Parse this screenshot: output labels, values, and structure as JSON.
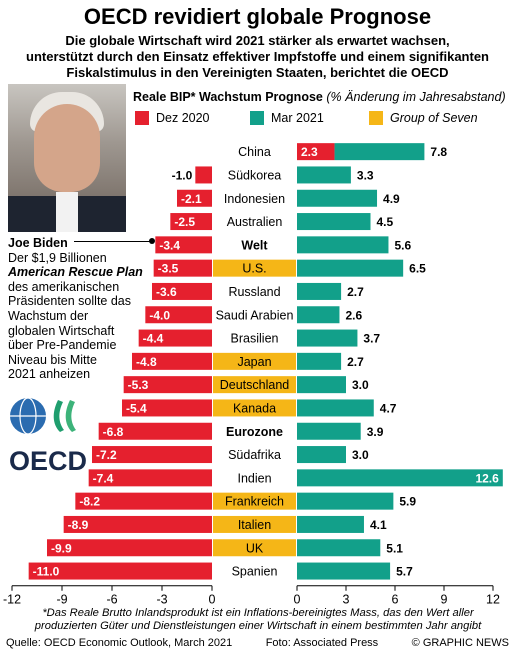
{
  "header": {
    "title": "OECD revidiert globale Prognose",
    "subtitle_lines": [
      "Die globale Wirtschaft wird 2021 stärker als erwartet wachsen,",
      "unterstützt durch den Einsatz effektiver Impfstoffe und einem signifikanten",
      "Fiskalstimulus in den Vereinigten Staaten, berichtet die OECD"
    ]
  },
  "caption": {
    "name": "Joe Biden",
    "line1": "Der $1,9 Billionen",
    "plan": "American Rescue Plan",
    "rest_lines": [
      "des amerikanischen",
      "Präsidenten sollte das",
      "Wachstum der",
      "globalen Wirtschaft",
      "über Pre-Pandemie",
      "Niveau bis Mitte",
      "2021 anheizen"
    ]
  },
  "logo": {
    "text": "OECD"
  },
  "colors": {
    "dez2020": "#e5202e",
    "mar2021": "#12a08a",
    "g7": "#f5b617",
    "axis": "#000000"
  },
  "chart_data": {
    "type": "bar",
    "title": "Reale BIP* Wachstum Prognose",
    "title_note": "(% Änderung im Jahresabstand)",
    "legend": [
      {
        "name": "Dez 2020",
        "color_key": "dez2020"
      },
      {
        "name": "Mar 2021",
        "color_key": "mar2021"
      },
      {
        "name": "Group of Seven",
        "color_key": "g7"
      }
    ],
    "series": [
      {
        "name": "Dez 2020",
        "values": [
          2.3,
          -1.0,
          -2.1,
          -2.5,
          -3.4,
          -3.5,
          -3.6,
          -4.0,
          -4.4,
          -4.8,
          -5.3,
          -5.4,
          -6.8,
          -7.2,
          -7.4,
          -8.2,
          -8.9,
          -9.9,
          -11.0
        ]
      },
      {
        "name": "Mar 2021",
        "values": [
          7.8,
          3.3,
          4.9,
          4.5,
          5.6,
          6.5,
          2.7,
          2.6,
          3.7,
          2.7,
          3.0,
          4.7,
          3.9,
          3.0,
          12.6,
          5.9,
          4.1,
          5.1,
          5.7
        ]
      }
    ],
    "categories": [
      "China",
      "Südkorea",
      "Indonesien",
      "Australien",
      "Welt",
      "U.S.",
      "Russland",
      "Saudi Arabien",
      "Brasilien",
      "Japan",
      "Deutschland",
      "Kanada",
      "Eurozone",
      "Südafrika",
      "Indien",
      "Frankreich",
      "Italien",
      "UK",
      "Spanien"
    ],
    "g7": [
      false,
      false,
      false,
      false,
      false,
      true,
      false,
      false,
      false,
      true,
      true,
      true,
      false,
      false,
      false,
      true,
      true,
      true,
      false
    ],
    "bold_categories": [
      "Welt",
      "Eurozone"
    ],
    "labels_dez": [
      "2.3",
      "-1.0",
      "-2.1",
      "-2.5",
      "-3.4",
      "-3.5",
      "-3.6",
      "-4.0",
      "-4.4",
      "-4.8",
      "-5.3",
      "-5.4",
      "-6.8",
      "-7.2",
      "-7.4",
      "-8.2",
      "-8.9",
      "-9.9",
      "-11.0"
    ],
    "labels_mar": [
      "7.8",
      "3.3",
      "4.9",
      "4.5",
      "5.6",
      "6.5",
      "2.7",
      "2.6",
      "3.7",
      "2.7",
      "3.0",
      "4.7",
      "3.9",
      "3.0",
      "12.6",
      "5.9",
      "4.1",
      "5.1",
      "5.7"
    ],
    "left_axis": {
      "range": [
        -12,
        0
      ],
      "ticks": [
        "-12",
        "-9",
        "-6",
        "-3",
        "0"
      ]
    },
    "right_axis": {
      "range": [
        0,
        12
      ],
      "ticks": [
        "0",
        "3",
        "6",
        "9",
        "12"
      ]
    }
  },
  "footnote_lines": [
    "*Das Reale Brutto Inlandsprodukt ist ein Inflations-bereinigtes Mass, das den Wert aller",
    "produzierten Güter und Dienstleistungen einer Wirtschaft in einem bestimmten Jahr angibt"
  ],
  "source": {
    "left": "Quelle: OECD Economic Outlook, March 2021",
    "middle": "Foto: Associated Press",
    "right": "© GRAPHIC NEWS"
  }
}
